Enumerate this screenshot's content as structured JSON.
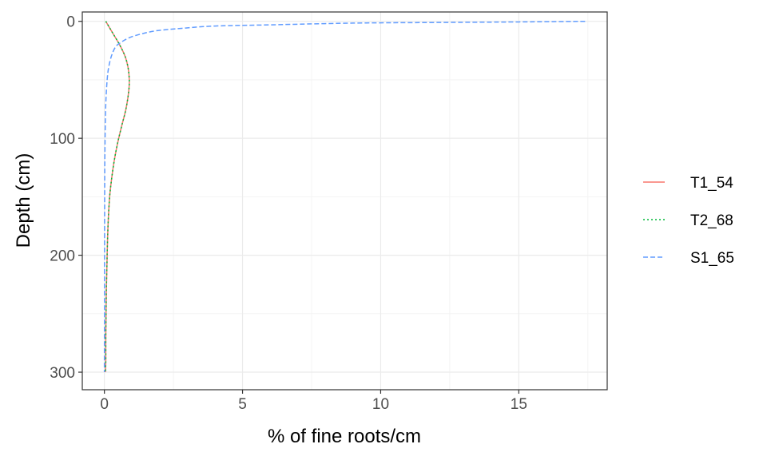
{
  "chart_data": {
    "type": "line",
    "title": "",
    "xlabel": "% of fine roots/cm",
    "ylabel": "Depth (cm)",
    "xlim": [
      -0.8,
      18.2
    ],
    "ylim": [
      -8,
      315
    ],
    "y_reversed": true,
    "x_ticks": [
      0,
      5,
      10,
      15
    ],
    "x_tick_labels": [
      "0",
      "5",
      "10",
      "15"
    ],
    "y_ticks": [
      0,
      100,
      200,
      300
    ],
    "y_tick_labels": [
      "0",
      "100",
      "200",
      "300"
    ],
    "grid": true,
    "legend_position": "right",
    "series": [
      {
        "name": "T1_54",
        "color": "#F8766D",
        "dash": "solid",
        "x": [
          0.05,
          0.3,
          0.55,
          0.75,
          0.86,
          0.9,
          0.88,
          0.78,
          0.62,
          0.47,
          0.35,
          0.26,
          0.19,
          0.14,
          0.11,
          0.09,
          0.07,
          0.06,
          0.05,
          0.05,
          0.04
        ],
        "y": [
          0,
          10,
          20,
          30,
          40,
          50,
          60,
          75,
          90,
          105,
          120,
          135,
          150,
          170,
          190,
          210,
          230,
          250,
          270,
          290,
          300
        ]
      },
      {
        "name": "T2_68",
        "color": "#00BA38",
        "dash": "dotted",
        "x": [
          0.05,
          0.3,
          0.55,
          0.75,
          0.86,
          0.9,
          0.88,
          0.78,
          0.62,
          0.47,
          0.35,
          0.26,
          0.19,
          0.14,
          0.11,
          0.09,
          0.07,
          0.06,
          0.05,
          0.05,
          0.04
        ],
        "y": [
          0,
          10,
          20,
          30,
          40,
          50,
          60,
          75,
          90,
          105,
          120,
          135,
          150,
          170,
          190,
          210,
          230,
          250,
          270,
          290,
          300
        ]
      },
      {
        "name": "S1_65",
        "color": "#619CFF",
        "dash": "dashed",
        "x": [
          17.4,
          15,
          12,
          9,
          6,
          4,
          2.8,
          1.9,
          1.3,
          0.9,
          0.6,
          0.4,
          0.25,
          0.15,
          0.1,
          0.06,
          0.04,
          0.02,
          0.01,
          0.0
        ],
        "y": [
          0,
          0.5,
          1,
          1.5,
          3,
          4,
          6,
          8,
          11,
          14,
          18,
          22,
          30,
          40,
          50,
          65,
          80,
          110,
          150,
          300
        ]
      }
    ]
  }
}
